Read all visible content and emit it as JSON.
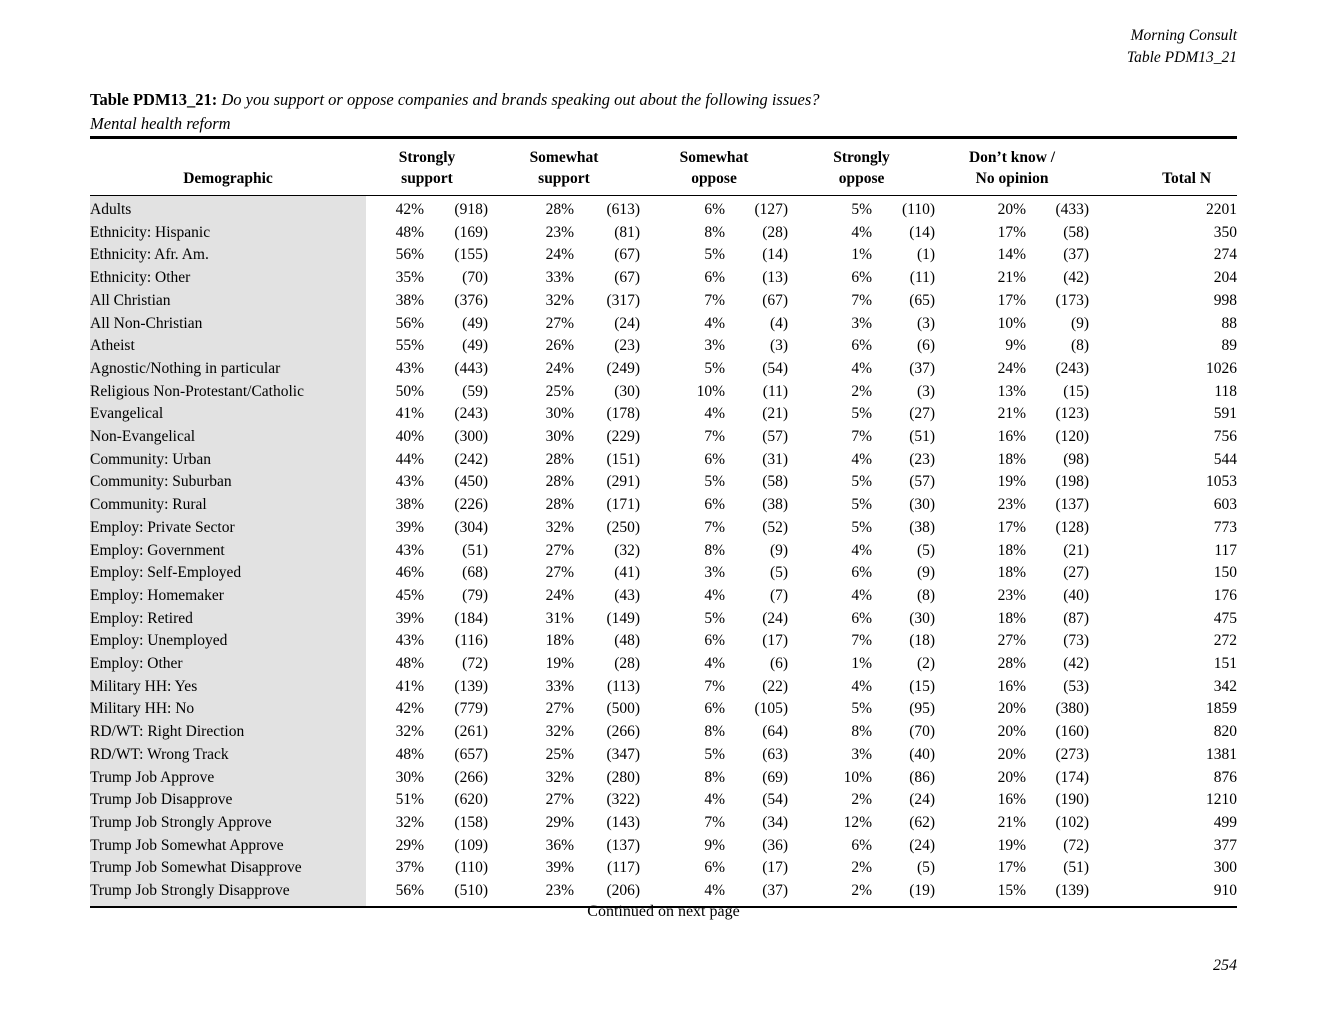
{
  "running_head": {
    "publisher": "Morning Consult",
    "table_ref": "Table PDM13_21"
  },
  "title": {
    "label": "Table PDM13_21:",
    "question": "Do you support or oppose companies and brands speaking out about the following issues?",
    "topic": "Mental health reform"
  },
  "table": {
    "demographic_header": "Demographic",
    "total_header": "Total N",
    "response_columns": [
      {
        "line1": "Strongly",
        "line2": "support"
      },
      {
        "line1": "Somewhat",
        "line2": "support"
      },
      {
        "line1": "Somewhat",
        "line2": "oppose"
      },
      {
        "line1": "Strongly",
        "line2": "oppose"
      },
      {
        "line1": "Don’t know /",
        "line2": "No opinion"
      }
    ],
    "rows": [
      {
        "label": "Adults",
        "values": [
          "42%",
          "(918)",
          "28%",
          "(613)",
          "6%",
          "(127)",
          "5%",
          "(110)",
          "20%",
          "(433)"
        ],
        "total": "2201"
      },
      {
        "label": "Ethnicity: Hispanic",
        "values": [
          "48%",
          "(169)",
          "23%",
          "(81)",
          "8%",
          "(28)",
          "4%",
          "(14)",
          "17%",
          "(58)"
        ],
        "total": "350"
      },
      {
        "label": "Ethnicity: Afr. Am.",
        "values": [
          "56%",
          "(155)",
          "24%",
          "(67)",
          "5%",
          "(14)",
          "1%",
          "(1)",
          "14%",
          "(37)"
        ],
        "total": "274"
      },
      {
        "label": "Ethnicity: Other",
        "values": [
          "35%",
          "(70)",
          "33%",
          "(67)",
          "6%",
          "(13)",
          "6%",
          "(11)",
          "21%",
          "(42)"
        ],
        "total": "204"
      },
      {
        "label": "All Christian",
        "values": [
          "38%",
          "(376)",
          "32%",
          "(317)",
          "7%",
          "(67)",
          "7%",
          "(65)",
          "17%",
          "(173)"
        ],
        "total": "998"
      },
      {
        "label": "All Non-Christian",
        "values": [
          "56%",
          "(49)",
          "27%",
          "(24)",
          "4%",
          "(4)",
          "3%",
          "(3)",
          "10%",
          "(9)"
        ],
        "total": "88"
      },
      {
        "label": "Atheist",
        "values": [
          "55%",
          "(49)",
          "26%",
          "(23)",
          "3%",
          "(3)",
          "6%",
          "(6)",
          "9%",
          "(8)"
        ],
        "total": "89"
      },
      {
        "label": "Agnostic/Nothing in particular",
        "values": [
          "43%",
          "(443)",
          "24%",
          "(249)",
          "5%",
          "(54)",
          "4%",
          "(37)",
          "24%",
          "(243)"
        ],
        "total": "1026"
      },
      {
        "label": "Religious Non-Protestant/Catholic",
        "values": [
          "50%",
          "(59)",
          "25%",
          "(30)",
          "10%",
          "(11)",
          "2%",
          "(3)",
          "13%",
          "(15)"
        ],
        "total": "118"
      },
      {
        "label": "Evangelical",
        "values": [
          "41%",
          "(243)",
          "30%",
          "(178)",
          "4%",
          "(21)",
          "5%",
          "(27)",
          "21%",
          "(123)"
        ],
        "total": "591"
      },
      {
        "label": "Non-Evangelical",
        "values": [
          "40%",
          "(300)",
          "30%",
          "(229)",
          "7%",
          "(57)",
          "7%",
          "(51)",
          "16%",
          "(120)"
        ],
        "total": "756"
      },
      {
        "label": "Community: Urban",
        "values": [
          "44%",
          "(242)",
          "28%",
          "(151)",
          "6%",
          "(31)",
          "4%",
          "(23)",
          "18%",
          "(98)"
        ],
        "total": "544"
      },
      {
        "label": "Community: Suburban",
        "values": [
          "43%",
          "(450)",
          "28%",
          "(291)",
          "5%",
          "(58)",
          "5%",
          "(57)",
          "19%",
          "(198)"
        ],
        "total": "1053"
      },
      {
        "label": "Community: Rural",
        "values": [
          "38%",
          "(226)",
          "28%",
          "(171)",
          "6%",
          "(38)",
          "5%",
          "(30)",
          "23%",
          "(137)"
        ],
        "total": "603"
      },
      {
        "label": "Employ: Private Sector",
        "values": [
          "39%",
          "(304)",
          "32%",
          "(250)",
          "7%",
          "(52)",
          "5%",
          "(38)",
          "17%",
          "(128)"
        ],
        "total": "773"
      },
      {
        "label": "Employ: Government",
        "values": [
          "43%",
          "(51)",
          "27%",
          "(32)",
          "8%",
          "(9)",
          "4%",
          "(5)",
          "18%",
          "(21)"
        ],
        "total": "117"
      },
      {
        "label": "Employ: Self-Employed",
        "values": [
          "46%",
          "(68)",
          "27%",
          "(41)",
          "3%",
          "(5)",
          "6%",
          "(9)",
          "18%",
          "(27)"
        ],
        "total": "150"
      },
      {
        "label": "Employ: Homemaker",
        "values": [
          "45%",
          "(79)",
          "24%",
          "(43)",
          "4%",
          "(7)",
          "4%",
          "(8)",
          "23%",
          "(40)"
        ],
        "total": "176"
      },
      {
        "label": "Employ: Retired",
        "values": [
          "39%",
          "(184)",
          "31%",
          "(149)",
          "5%",
          "(24)",
          "6%",
          "(30)",
          "18%",
          "(87)"
        ],
        "total": "475"
      },
      {
        "label": "Employ: Unemployed",
        "values": [
          "43%",
          "(116)",
          "18%",
          "(48)",
          "6%",
          "(17)",
          "7%",
          "(18)",
          "27%",
          "(73)"
        ],
        "total": "272"
      },
      {
        "label": "Employ: Other",
        "values": [
          "48%",
          "(72)",
          "19%",
          "(28)",
          "4%",
          "(6)",
          "1%",
          "(2)",
          "28%",
          "(42)"
        ],
        "total": "151"
      },
      {
        "label": "Military HH: Yes",
        "values": [
          "41%",
          "(139)",
          "33%",
          "(113)",
          "7%",
          "(22)",
          "4%",
          "(15)",
          "16%",
          "(53)"
        ],
        "total": "342"
      },
      {
        "label": "Military HH: No",
        "values": [
          "42%",
          "(779)",
          "27%",
          "(500)",
          "6%",
          "(105)",
          "5%",
          "(95)",
          "20%",
          "(380)"
        ],
        "total": "1859"
      },
      {
        "label": "RD/WT: Right Direction",
        "values": [
          "32%",
          "(261)",
          "32%",
          "(266)",
          "8%",
          "(64)",
          "8%",
          "(70)",
          "20%",
          "(160)"
        ],
        "total": "820"
      },
      {
        "label": "RD/WT: Wrong Track",
        "values": [
          "48%",
          "(657)",
          "25%",
          "(347)",
          "5%",
          "(63)",
          "3%",
          "(40)",
          "20%",
          "(273)"
        ],
        "total": "1381"
      },
      {
        "label": "Trump Job Approve",
        "values": [
          "30%",
          "(266)",
          "32%",
          "(280)",
          "8%",
          "(69)",
          "10%",
          "(86)",
          "20%",
          "(174)"
        ],
        "total": "876"
      },
      {
        "label": "Trump Job Disapprove",
        "values": [
          "51%",
          "(620)",
          "27%",
          "(322)",
          "4%",
          "(54)",
          "2%",
          "(24)",
          "16%",
          "(190)"
        ],
        "total": "1210"
      },
      {
        "label": "Trump Job Strongly Approve",
        "values": [
          "32%",
          "(158)",
          "29%",
          "(143)",
          "7%",
          "(34)",
          "12%",
          "(62)",
          "21%",
          "(102)"
        ],
        "total": "499"
      },
      {
        "label": "Trump Job Somewhat Approve",
        "values": [
          "29%",
          "(109)",
          "36%",
          "(137)",
          "9%",
          "(36)",
          "6%",
          "(24)",
          "19%",
          "(72)"
        ],
        "total": "377"
      },
      {
        "label": "Trump Job Somewhat Disapprove",
        "values": [
          "37%",
          "(110)",
          "39%",
          "(117)",
          "6%",
          "(17)",
          "2%",
          "(5)",
          "17%",
          "(51)"
        ],
        "total": "300"
      },
      {
        "label": "Trump Job Strongly Disapprove",
        "values": [
          "56%",
          "(510)",
          "23%",
          "(206)",
          "4%",
          "(37)",
          "2%",
          "(19)",
          "15%",
          "(139)"
        ],
        "total": "910"
      }
    ]
  },
  "footer": {
    "continued": "Continued on next page",
    "page_number": "254"
  }
}
